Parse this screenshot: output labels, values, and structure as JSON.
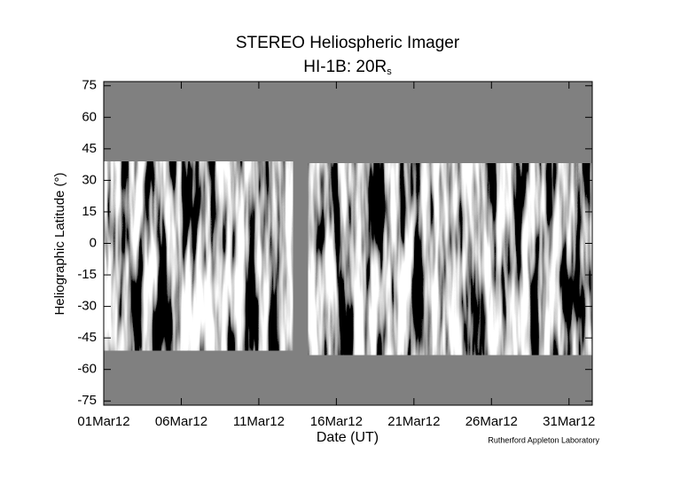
{
  "chart_data": {
    "type": "image",
    "title": "STEREO Heliospheric Imager",
    "subtitle": {
      "text": "HI-1B: 20R",
      "subscript": "s"
    },
    "x_label": "Date (UT)",
    "y_label": "Heliographic Latitude (°)",
    "credit": "Rutherford Appleton Laboratory",
    "xlim": [
      1,
      32.5
    ],
    "xticks": [
      {
        "value": 1,
        "label": "01Mar12"
      },
      {
        "value": 6,
        "label": "06Mar12"
      },
      {
        "value": 11,
        "label": "11Mar12"
      },
      {
        "value": 16,
        "label": "16Mar12"
      },
      {
        "value": 21,
        "label": "21Mar12"
      },
      {
        "value": 26,
        "label": "26Mar12"
      },
      {
        "value": 31,
        "label": "31Mar12"
      }
    ],
    "ylim": [
      -77,
      77
    ],
    "yticks": [
      75,
      60,
      45,
      30,
      15,
      0,
      -15,
      -30,
      -45,
      -60,
      -75
    ],
    "background_color": "#808080",
    "segments": [
      {
        "start": 1,
        "end": 13.2,
        "top": 39,
        "bottom": -51
      },
      {
        "start": 14.2,
        "end": 32.5,
        "top": 38,
        "bottom": -53
      }
    ]
  }
}
